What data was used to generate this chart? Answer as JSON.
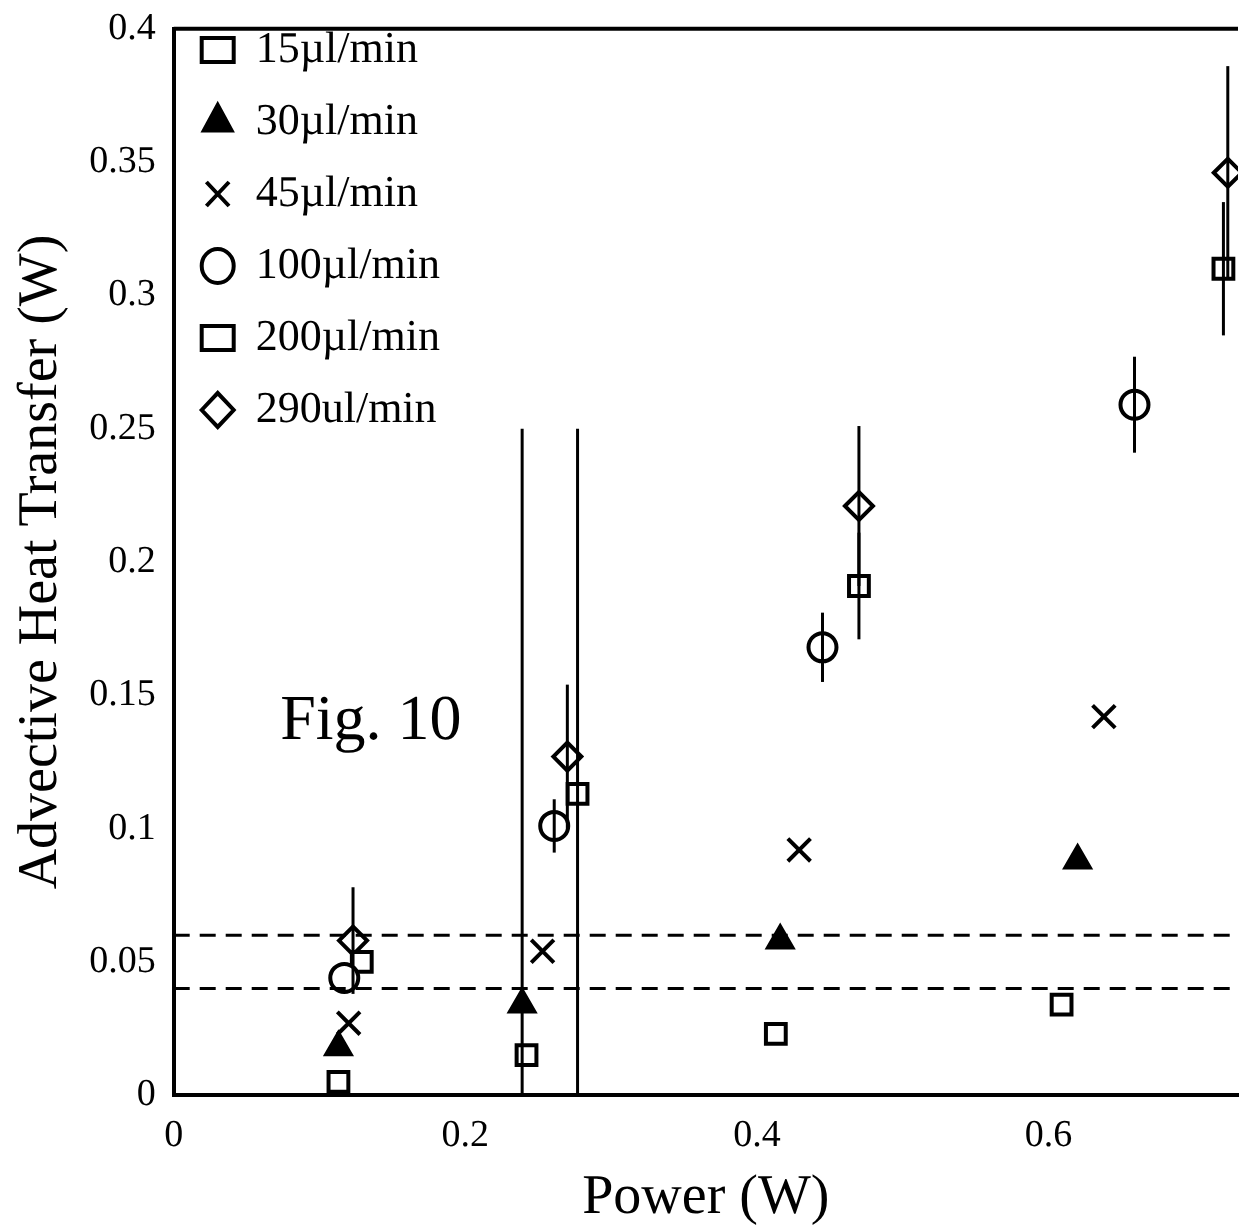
{
  "chart_data": {
    "type": "scatter",
    "xlabel": "Power (W)",
    "ylabel": "Advective Heat Transfer (W)",
    "xlim": [
      0,
      0.73
    ],
    "xticks": [
      0,
      0.2,
      0.4,
      0.6
    ],
    "ylim": [
      0,
      0.4
    ],
    "yticks": [
      0,
      0.05,
      {
        "value": 0.1,
        "label": "0.1"
      },
      0.15,
      {
        "value": 0.2,
        "label": "0.2"
      },
      0.25,
      {
        "value": 0.3,
        "label": "0.3"
      },
      0.35,
      {
        "value": 0.4,
        "label": "0.4"
      }
    ],
    "grid": false,
    "legend": "top left",
    "annotations": [
      "Fig. 10"
    ],
    "ref_lines": [
      {
        "axis": "y",
        "value": 0.06,
        "line_style": "dashed",
        "color": "#000000"
      },
      {
        "axis": "y",
        "value": 0.04,
        "line_style": "dashed",
        "color": "#000000"
      }
    ],
    "series": [
      {
        "name": "15µl/min",
        "color": "#000000",
        "marker": "square",
        "x": [
          0.113,
          0.242,
          0.413,
          0.609
        ],
        "values": [
          0.005,
          0.015,
          0.023,
          0.034
        ]
      },
      {
        "name": "30µl/min",
        "color": "#000000",
        "marker": "triangle",
        "x": [
          0.113,
          0.239,
          0.416,
          0.62
        ],
        "values": [
          0.018,
          0.034,
          0.058,
          0.088
        ],
        "errors": [
          null,
          [
            0,
            0.25
          ],
          null,
          null
        ]
      },
      {
        "name": "45µl/min",
        "color": "#000000",
        "marker": "cross",
        "x": [
          0.12,
          0.253,
          0.429,
          0.638
        ],
        "values": [
          0.027,
          0.054,
          0.092,
          0.142
        ]
      },
      {
        "name": "100µl/min",
        "color": "#000000",
        "marker": "circle",
        "x": [
          0.117,
          0.261,
          0.445,
          0.659
        ],
        "values": [
          0.044,
          0.101,
          0.168,
          0.259
        ],
        "errors": [
          null,
          0.01,
          0.013,
          0.018
        ]
      },
      {
        "name": "200µl/min",
        "color": "#000000",
        "marker": "square",
        "x": [
          0.129,
          0.277,
          0.47,
          0.72
        ],
        "values": [
          0.05,
          0.113,
          0.191,
          0.31
        ],
        "errors": [
          null,
          [
            0,
            0.25
          ],
          0.02,
          0.025
        ]
      },
      {
        "name": "290ul/min",
        "color": "#000000",
        "marker": "diamond",
        "x": [
          0.123,
          0.27,
          0.47,
          0.723
        ],
        "values": [
          0.058,
          0.127,
          0.221,
          0.346
        ],
        "errors": [
          0.02,
          0.027,
          0.03,
          0.04
        ]
      }
    ]
  }
}
